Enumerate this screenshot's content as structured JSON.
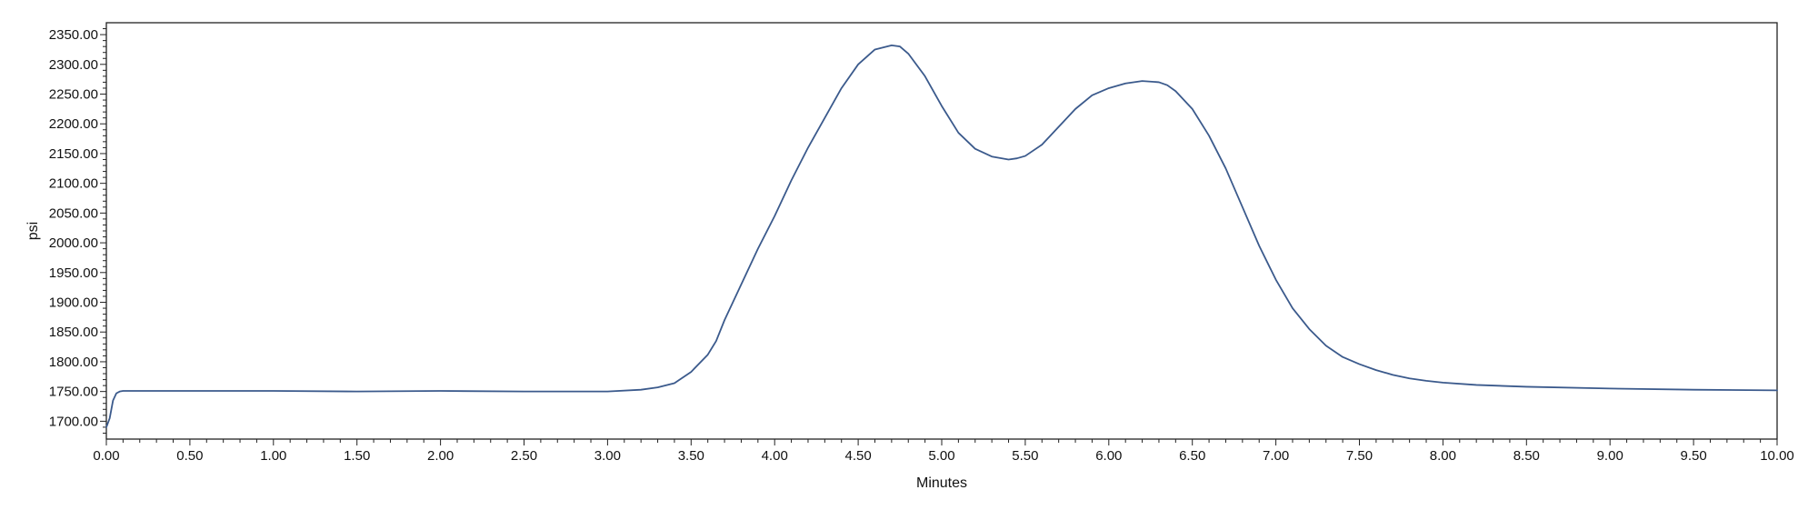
{
  "chart_data": {
    "type": "line",
    "title": "",
    "xlabel": "Minutes",
    "ylabel": "psi",
    "xlim": [
      0,
      10
    ],
    "ylim": [
      1670,
      2370
    ],
    "grid": false,
    "line_color": "#3b5a8c",
    "x_ticks": [
      {
        "value": 0,
        "label": "0.00"
      },
      {
        "value": 0.5,
        "label": "0.50"
      },
      {
        "value": 1,
        "label": "1.00"
      },
      {
        "value": 1.5,
        "label": "1.50"
      },
      {
        "value": 2,
        "label": "2.00"
      },
      {
        "value": 2.5,
        "label": "2.50"
      },
      {
        "value": 3,
        "label": "3.00"
      },
      {
        "value": 3.5,
        "label": "3.50"
      },
      {
        "value": 4,
        "label": "4.00"
      },
      {
        "value": 4.5,
        "label": "4.50"
      },
      {
        "value": 5,
        "label": "5.00"
      },
      {
        "value": 5.5,
        "label": "5.50"
      },
      {
        "value": 6,
        "label": "6.00"
      },
      {
        "value": 6.5,
        "label": "6.50"
      },
      {
        "value": 7,
        "label": "7.00"
      },
      {
        "value": 7.5,
        "label": "7.50"
      },
      {
        "value": 8,
        "label": "8.00"
      },
      {
        "value": 8.5,
        "label": "8.50"
      },
      {
        "value": 9,
        "label": "9.00"
      },
      {
        "value": 9.5,
        "label": "9.50"
      },
      {
        "value": 10,
        "label": "10.00"
      }
    ],
    "y_ticks": [
      {
        "value": 1700,
        "label": "1700.00"
      },
      {
        "value": 1750,
        "label": "1750.00"
      },
      {
        "value": 1800,
        "label": "1800.00"
      },
      {
        "value": 1850,
        "label": "1850.00"
      },
      {
        "value": 1900,
        "label": "1900.00"
      },
      {
        "value": 1950,
        "label": "1950.00"
      },
      {
        "value": 2000,
        "label": "2000.00"
      },
      {
        "value": 2050,
        "label": "2050.00"
      },
      {
        "value": 2100,
        "label": "2100.00"
      },
      {
        "value": 2150,
        "label": "2150.00"
      },
      {
        "value": 2200,
        "label": "2200.00"
      },
      {
        "value": 2250,
        "label": "2250.00"
      },
      {
        "value": 2300,
        "label": "2300.00"
      },
      {
        "value": 2350,
        "label": "2350.00"
      }
    ],
    "series": [
      {
        "x": [
          0.0,
          0.02,
          0.04,
          0.06,
          0.08,
          0.1,
          0.2,
          0.5,
          1.0,
          1.5,
          2.0,
          2.5,
          3.0,
          3.2,
          3.3,
          3.4,
          3.5,
          3.6,
          3.65,
          3.7,
          3.8,
          3.9,
          4.0,
          4.1,
          4.2,
          4.3,
          4.4,
          4.5,
          4.6,
          4.7,
          4.75,
          4.8,
          4.9,
          5.0,
          5.1,
          5.2,
          5.3,
          5.4,
          5.45,
          5.5,
          5.6,
          5.7,
          5.8,
          5.9,
          6.0,
          6.1,
          6.2,
          6.3,
          6.35,
          6.4,
          6.5,
          6.6,
          6.7,
          6.8,
          6.9,
          7.0,
          7.1,
          7.2,
          7.3,
          7.4,
          7.5,
          7.6,
          7.7,
          7.8,
          7.9,
          8.0,
          8.2,
          8.5,
          9.0,
          9.5,
          10.0
        ],
        "y": [
          1690,
          1705,
          1735,
          1747,
          1750,
          1751,
          1751,
          1751,
          1751,
          1750,
          1751,
          1750,
          1750,
          1753,
          1757,
          1764,
          1783,
          1812,
          1835,
          1870,
          1930,
          1990,
          2045,
          2105,
          2160,
          2210,
          2260,
          2300,
          2325,
          2332,
          2330,
          2318,
          2280,
          2230,
          2185,
          2158,
          2145,
          2140,
          2142,
          2146,
          2165,
          2195,
          2225,
          2248,
          2260,
          2268,
          2272,
          2270,
          2265,
          2255,
          2225,
          2180,
          2125,
          2060,
          1995,
          1938,
          1890,
          1855,
          1827,
          1808,
          1796,
          1786,
          1778,
          1772,
          1768,
          1765,
          1761,
          1758,
          1755,
          1753,
          1752
        ]
      }
    ]
  }
}
